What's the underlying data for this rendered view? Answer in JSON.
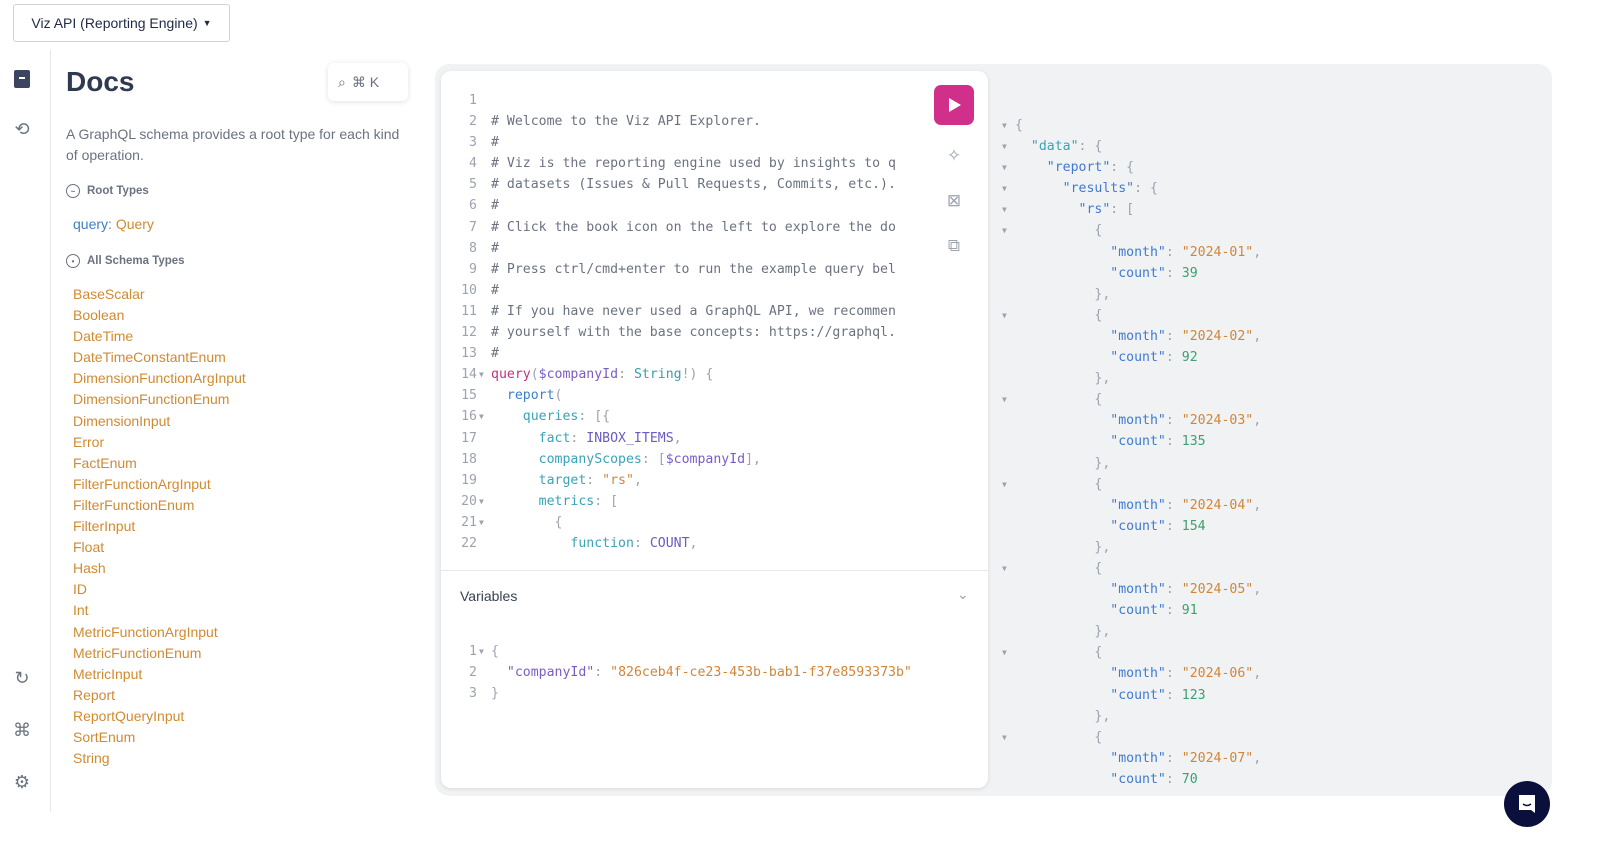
{
  "api_selector": {
    "label": "Viz API (Reporting Engine)"
  },
  "rail": {
    "icons": [
      "book-icon",
      "history-icon",
      "refetch-icon",
      "shortcuts-icon",
      "settings-icon"
    ]
  },
  "docs": {
    "title": "Docs",
    "search_shortcut": "⌘ K",
    "description": "A GraphQL schema provides a root type for each kind of operation.",
    "root_types_label": "Root Types",
    "root_query_field": "query",
    "root_query_type": "Query",
    "all_types_label": "All Schema Types",
    "types": [
      "BaseScalar",
      "Boolean",
      "DateTime",
      "DateTimeConstantEnum",
      "DimensionFunctionArgInput",
      "DimensionFunctionEnum",
      "DimensionInput",
      "Error",
      "FactEnum",
      "FilterFunctionArgInput",
      "FilterFunctionEnum",
      "FilterInput",
      "Float",
      "Hash",
      "ID",
      "Int",
      "MetricFunctionArgInput",
      "MetricFunctionEnum",
      "MetricInput",
      "Report",
      "ReportQueryInput",
      "SortEnum",
      "String"
    ]
  },
  "colors": {
    "run_button": "#d0308a",
    "type_link": "#d08a32",
    "field_link": "#3d7fc9",
    "chat_button": "#0b0f3c"
  },
  "editor": {
    "lines": [
      [],
      [
        [
          "# Welcome to the Viz API Explorer.",
          "comment"
        ]
      ],
      [
        [
          "#",
          "comment"
        ]
      ],
      [
        [
          "# Viz is the reporting engine used by insights to q",
          "comment"
        ]
      ],
      [
        [
          "# datasets (Issues & Pull Requests, Commits, etc.).",
          "comment"
        ]
      ],
      [
        [
          "#",
          "comment"
        ]
      ],
      [
        [
          "# Click the book icon on the left to explore the do",
          "comment"
        ]
      ],
      [
        [
          "#",
          "comment"
        ]
      ],
      [
        [
          "# Press ctrl/cmd+enter to run the example query bel",
          "comment"
        ]
      ],
      [
        [
          "#",
          "comment"
        ]
      ],
      [
        [
          "# If you have never used a GraphQL API, we recommen",
          "comment"
        ]
      ],
      [
        [
          "# yourself with the base concepts: https://graphql.",
          "comment"
        ]
      ],
      [
        [
          "#",
          "comment"
        ]
      ],
      [
        [
          "query",
          "kw"
        ],
        [
          "(",
          "p"
        ],
        [
          "$companyId",
          "var"
        ],
        [
          ": ",
          "p"
        ],
        [
          "String",
          "type"
        ],
        [
          "!) {",
          "p"
        ]
      ],
      [
        [
          "  "
        ],
        [
          "report",
          "fn"
        ],
        [
          "(",
          "p"
        ]
      ],
      [
        [
          "    "
        ],
        [
          "queries",
          "field"
        ],
        [
          ": [{",
          "p"
        ]
      ],
      [
        [
          "      "
        ],
        [
          "fact",
          "field"
        ],
        [
          ": ",
          "p"
        ],
        [
          "INBOX_ITEMS",
          "enum"
        ],
        [
          ",",
          "p"
        ]
      ],
      [
        [
          "      "
        ],
        [
          "companyScopes",
          "field"
        ],
        [
          ": [",
          "p"
        ],
        [
          "$companyId",
          "var"
        ],
        [
          "],",
          "p"
        ]
      ],
      [
        [
          "      "
        ],
        [
          "target",
          "field"
        ],
        [
          ": ",
          "p"
        ],
        [
          "\"rs\"",
          "str"
        ],
        [
          ",",
          "p"
        ]
      ],
      [
        [
          "      "
        ],
        [
          "metrics",
          "field"
        ],
        [
          ": [",
          "p"
        ]
      ],
      [
        [
          "        "
        ],
        [
          "{",
          "p"
        ]
      ],
      [
        [
          "          "
        ],
        [
          "function",
          "field"
        ],
        [
          ": ",
          "p"
        ],
        [
          "COUNT",
          "enum"
        ],
        [
          ",",
          "p"
        ]
      ]
    ],
    "folds": [
      14,
      16,
      20,
      21
    ]
  },
  "toolbar": {
    "run": "play-icon",
    "prettify": "prettify-icon",
    "merge": "merge-fragments-icon",
    "copy": "copy-icon"
  },
  "variables": {
    "title": "Variables",
    "lines": [
      [
        [
          "{",
          "p"
        ]
      ],
      [
        [
          "  "
        ],
        [
          "\"companyId\"",
          "var"
        ],
        [
          ": ",
          "p"
        ],
        [
          "\"826ceb4f-ce23-453b-bab1-f37e8593373b\"",
          "str"
        ]
      ],
      [
        [
          "}",
          "p"
        ]
      ]
    ],
    "folds": [
      1
    ]
  },
  "results": {
    "rows": [
      {
        "month": "2024-01",
        "count": 39
      },
      {
        "month": "2024-02",
        "count": 92
      },
      {
        "month": "2024-03",
        "count": 135
      },
      {
        "month": "2024-04",
        "count": 154
      },
      {
        "month": "2024-05",
        "count": 91
      },
      {
        "month": "2024-06",
        "count": 123
      },
      {
        "month": "2024-07",
        "count": 70
      }
    ]
  }
}
